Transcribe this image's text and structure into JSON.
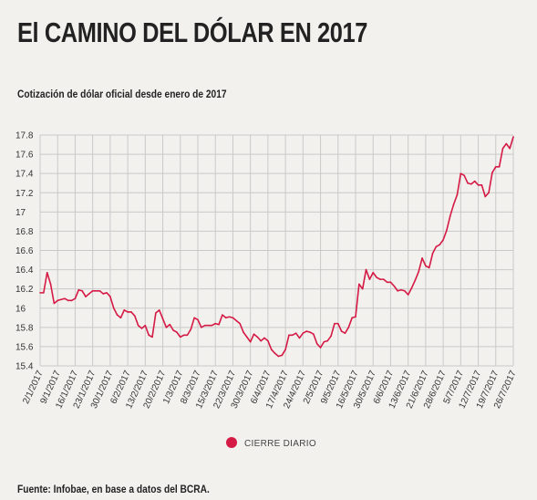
{
  "header": {
    "title": "El CAMINO DEL DÓLAR EN 2017",
    "subtitle": "Cotización de dólar oficial desde enero de 2017"
  },
  "footer": {
    "source": "Fuente: Infobae, en base a datos del BCRA."
  },
  "legend": {
    "label": "CIERRE DIARIO"
  },
  "colors": {
    "series": "#d51a45",
    "grid": "#c9c9c9",
    "background": "#f2f1ee"
  },
  "chart_data": {
    "type": "line",
    "ylim": [
      15.4,
      17.8
    ],
    "yticks": [
      "15.4",
      "15.6",
      "15.8",
      "16",
      "16.2",
      "16.4",
      "16.6",
      "16.8",
      "17",
      "17.2",
      "17.4",
      "17.6",
      "17.8"
    ],
    "xtick_labels": [
      "2/1/2017",
      "9/1/2017",
      "16/1/2017",
      "23/1/2017",
      "30/1/2017",
      "6/2/2017",
      "13/2/2017",
      "20/2/2017",
      "1/3/2017",
      "8/3/2017",
      "15/3/2017",
      "22/3/2017",
      "30/3/2017",
      "6/4/2017",
      "17/4/2017",
      "24/4/2017",
      "2/5/2017",
      "9/5/2017",
      "16/5/2017",
      "30/5/2017",
      "6/6/2017",
      "13/6/2017",
      "21/6/2017",
      "28/6/2017",
      "5/7/2017",
      "12/7/2017",
      "19/7/2017",
      "26/7/2017"
    ],
    "xtick_index": [
      0,
      5,
      10,
      15,
      20,
      25,
      30,
      35,
      40,
      45,
      50,
      55,
      60,
      65,
      70,
      75,
      80,
      85,
      90,
      95,
      100,
      105,
      110,
      115,
      120,
      125,
      130,
      135
    ],
    "series": [
      {
        "name": "CIERRE DIARIO",
        "values": [
          16.16,
          16.16,
          16.37,
          16.25,
          16.05,
          16.08,
          16.09,
          16.1,
          16.08,
          16.08,
          16.1,
          16.19,
          16.18,
          16.12,
          16.15,
          16.18,
          16.18,
          16.18,
          16.15,
          16.16,
          16.12,
          16.0,
          15.93,
          15.9,
          15.98,
          15.96,
          15.96,
          15.92,
          15.82,
          15.79,
          15.82,
          15.72,
          15.7,
          15.95,
          15.98,
          15.89,
          15.8,
          15.83,
          15.77,
          15.75,
          15.7,
          15.72,
          15.72,
          15.78,
          15.9,
          15.88,
          15.8,
          15.82,
          15.82,
          15.82,
          15.84,
          15.83,
          15.93,
          15.9,
          15.91,
          15.9,
          15.87,
          15.84,
          15.75,
          15.7,
          15.65,
          15.73,
          15.7,
          15.66,
          15.69,
          15.66,
          15.57,
          15.53,
          15.5,
          15.51,
          15.57,
          15.72,
          15.72,
          15.74,
          15.69,
          15.74,
          15.76,
          15.75,
          15.73,
          15.63,
          15.59,
          15.65,
          15.66,
          15.71,
          15.84,
          15.84,
          15.76,
          15.74,
          15.8,
          15.9,
          15.91,
          16.25,
          16.2,
          16.4,
          16.3,
          16.37,
          16.32,
          16.3,
          16.3,
          16.27,
          16.27,
          16.23,
          16.18,
          16.19,
          16.18,
          16.14,
          16.21,
          16.29,
          16.38,
          16.52,
          16.44,
          16.42,
          16.57,
          16.64,
          16.66,
          16.71,
          16.81,
          16.96,
          17.08,
          17.18,
          17.4,
          17.38,
          17.3,
          17.29,
          17.32,
          17.28,
          17.28,
          17.16,
          17.2,
          17.41,
          17.47,
          17.47,
          17.66,
          17.71,
          17.66,
          17.78
        ]
      }
    ]
  }
}
